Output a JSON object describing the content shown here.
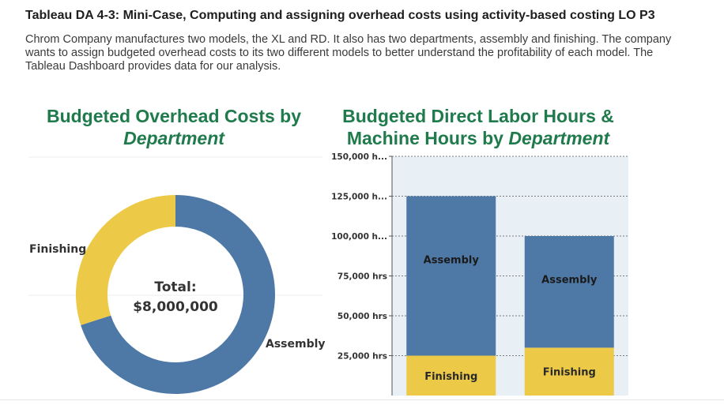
{
  "heading": "Tableau DA 4-3: Mini-Case, Computing and assigning overhead costs using activity-based costing LO P3",
  "intro": "Chrom Company manufactures two models, the XL and RD. It also has two departments, assembly and finishing. The company wants to assign budgeted overhead costs to its two different models to better understand the profitability of each model. The Tableau Dashboard provides data for our analysis.",
  "colors": {
    "assembly": "#4e79a7",
    "finishing": "#edc948",
    "title_green": "#1f7a4c",
    "plot_bg": "#e8f0f6"
  },
  "chart_data": [
    {
      "type": "pie",
      "title_main": "Budgeted Overhead Costs by",
      "title_em": "Department",
      "center_label": "Total:",
      "center_value": "$8,000,000",
      "slices": [
        {
          "label": "Assembly",
          "share": 0.7
        },
        {
          "label": "Finishing",
          "share": 0.3
        }
      ]
    },
    {
      "type": "bar",
      "title_main": "Budgeted Direct Labor Hours & Machine Hours by",
      "title_em": "Department",
      "stacked": true,
      "ylim": [
        0,
        150000
      ],
      "y_ticks": [
        {
          "value": 25000,
          "label": "25,000 hrs"
        },
        {
          "value": 50000,
          "label": "50,000 hrs"
        },
        {
          "value": 75000,
          "label": "75,000 hrs"
        },
        {
          "value": 100000,
          "label": "100,000 h..."
        },
        {
          "value": 125000,
          "label": "125,000 h..."
        },
        {
          "value": 150000,
          "label": "150,000 h..."
        }
      ],
      "grid": true,
      "bars": [
        {
          "segments": [
            {
              "name": "Finishing",
              "value": 25000
            },
            {
              "name": "Assembly",
              "value": 100000
            }
          ]
        },
        {
          "segments": [
            {
              "name": "Finishing",
              "value": 30000
            },
            {
              "name": "Assembly",
              "value": 70000
            }
          ]
        }
      ]
    }
  ]
}
